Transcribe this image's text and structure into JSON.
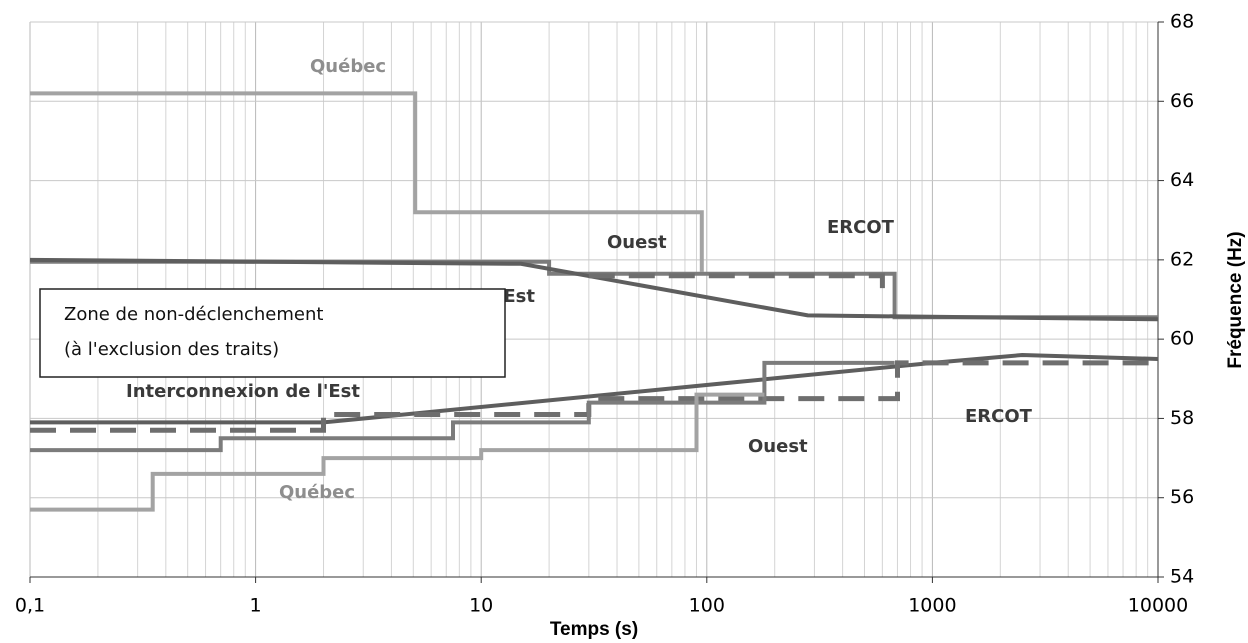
{
  "chart_data": {
    "type": "line",
    "xlabel": "Temps (s)",
    "ylabel": "Fréquence (Hz)",
    "xscale": "log",
    "xlim": [
      0.1,
      10000
    ],
    "xticks": [
      {
        "value": 0.1,
        "label": "0,1"
      },
      1,
      10,
      100,
      1000,
      10000
    ],
    "ylim": [
      54,
      68
    ],
    "yticks": [
      54,
      56,
      58,
      60,
      62,
      64,
      66,
      68
    ],
    "grid": true,
    "annotations": [
      "Zone de non-déclenchement",
      "(à l'exclusion des traits)"
    ],
    "series": [
      {
        "name": "Québec",
        "color": "#a3a3a3",
        "dash": false,
        "x": [
          0.1,
          5.1,
          5.1,
          95,
          95
        ],
        "values": [
          66.2,
          66.2,
          63.2,
          63.2,
          61.7
        ]
      },
      {
        "name": "Ouest",
        "color": "#7c7c7c",
        "dash": false,
        "x": [
          0.1,
          20,
          20,
          680,
          680,
          10000
        ],
        "values": [
          61.95,
          61.95,
          61.65,
          61.65,
          60.55,
          60.55
        ]
      },
      {
        "name": "Interconnexion de l'Est",
        "color": "#5e5e5e",
        "dash": false,
        "x": [
          0.1,
          15,
          280,
          10000
        ],
        "values": [
          62.0,
          61.9,
          60.6,
          60.5
        ]
      },
      {
        "name": "ERCOT",
        "color": "#6e6e6e",
        "dash": true,
        "x": [
          30,
          600,
          600
        ],
        "values": [
          61.6,
          61.6,
          61.0
        ]
      },
      {
        "name": "Interconnexion de l'Est",
        "color": "#5e5e5e",
        "dash": false,
        "x": [
          0.1,
          2,
          1000,
          2500,
          10000
        ],
        "values": [
          57.9,
          57.9,
          59.4,
          59.6,
          59.5
        ]
      },
      {
        "name": "ERCOT",
        "color": "#6e6e6e",
        "dash": true,
        "x": [
          0.1,
          2,
          2,
          30,
          30,
          700,
          700,
          10000
        ],
        "values": [
          57.7,
          57.7,
          58.1,
          58.1,
          58.5,
          58.5,
          59.4,
          59.4
        ]
      },
      {
        "name": "Ouest",
        "color": "#7c7c7c",
        "dash": false,
        "x": [
          0.1,
          0.7,
          0.7,
          7.5,
          7.5,
          30,
          30,
          180,
          180,
          680
        ],
        "values": [
          57.2,
          57.2,
          57.5,
          57.5,
          57.9,
          57.9,
          58.4,
          58.4,
          59.4,
          59.4
        ]
      },
      {
        "name": "Québec",
        "color": "#a3a3a3",
        "dash": false,
        "x": [
          0.1,
          0.35,
          0.35,
          2,
          2,
          10,
          10,
          90,
          90,
          180
        ],
        "values": [
          55.7,
          55.7,
          56.6,
          56.6,
          57.0,
          57.0,
          57.2,
          57.2,
          58.6,
          58.6
        ]
      }
    ]
  }
}
